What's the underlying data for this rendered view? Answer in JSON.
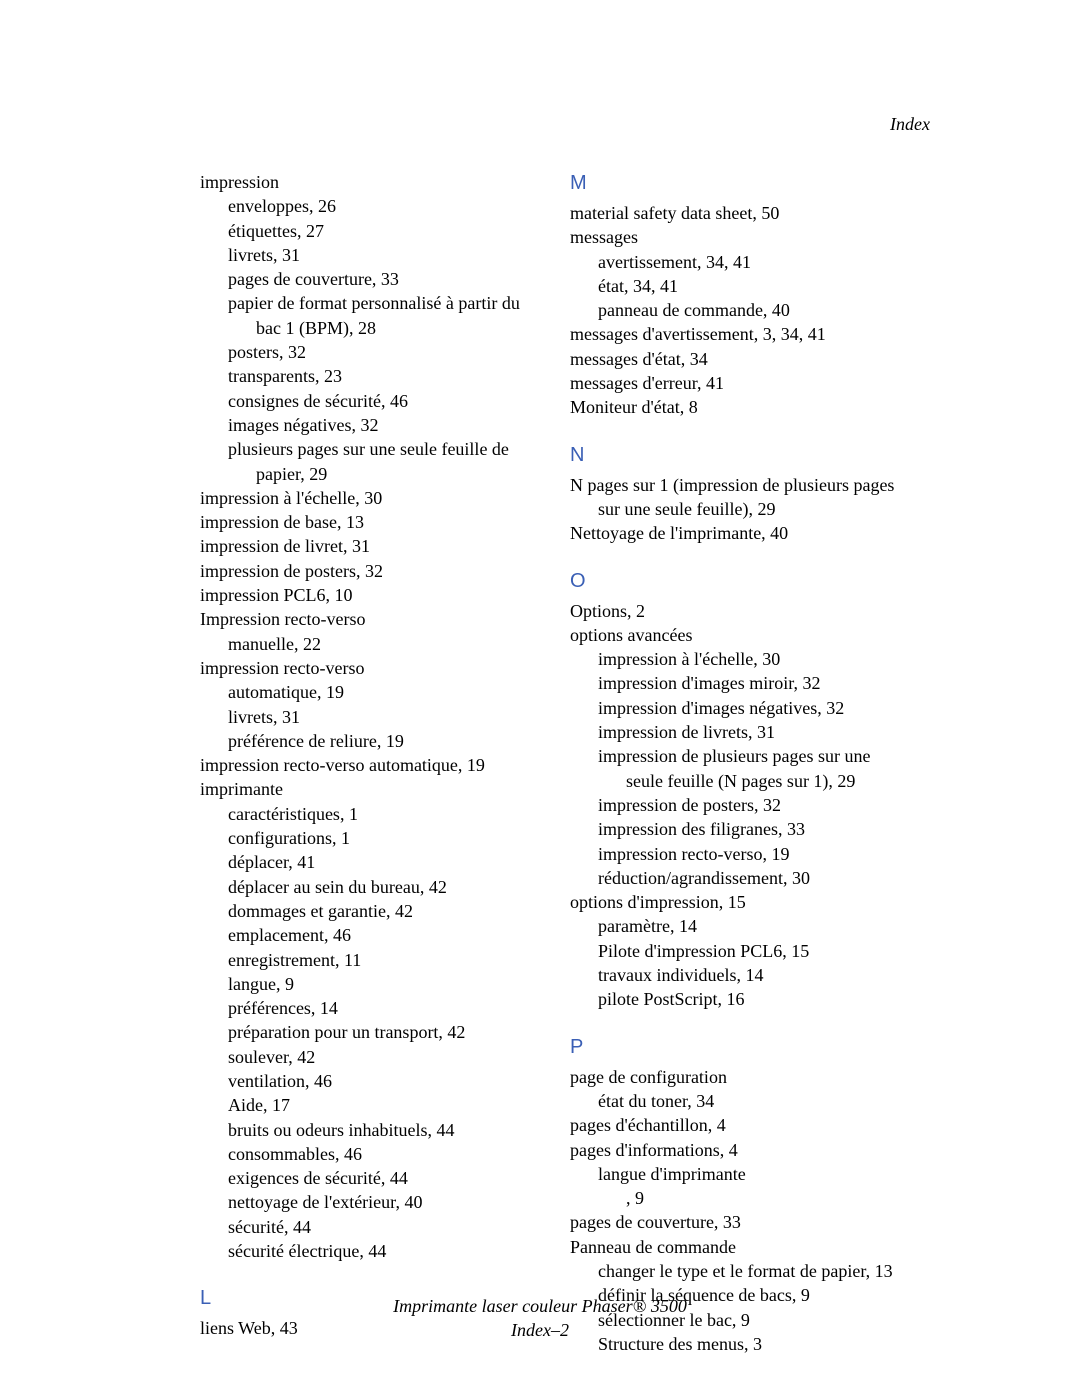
{
  "header": {
    "label": "Index"
  },
  "col_left": {
    "i0": "impression",
    "i0_1": "enveloppes, 26",
    "i0_2": "étiquettes, 27",
    "i0_3": "livrets, 31",
    "i0_4": "pages de couverture, 33",
    "i0_5a": "papier de format personnalisé à partir du",
    "i0_5b": "bac 1 (BPM), 28",
    "i0_6": "posters, 32",
    "i0_7": "transparents, 23",
    "i0_8": "consignes de sécurité, 46",
    "i0_9": "images négatives, 32",
    "i0_10a": "plusieurs pages sur une seule feuille de",
    "i0_10b": "papier, 29",
    "i1": "impression à l'échelle, 30",
    "i2": "impression de base, 13",
    "i3": "impression de livret, 31",
    "i4": "impression de posters, 32",
    "i5": "impression PCL6, 10",
    "i6": "Impression recto-verso",
    "i6_1": "manuelle, 22",
    "i7": "impression recto-verso",
    "i7_1": "automatique, 19",
    "i7_2": "livrets, 31",
    "i7_3": "préférence de reliure, 19",
    "i8": "impression recto-verso automatique, 19",
    "i9": "imprimante",
    "i9_1": "caractéristiques, 1",
    "i9_2": "configurations, 1",
    "i9_3": "déplacer, 41",
    "i9_4": "déplacer au sein du bureau, 42",
    "i9_5": "dommages et garantie, 42",
    "i9_6": "emplacement, 46",
    "i9_7": "enregistrement, 11",
    "i9_8": "langue, 9",
    "i9_9": "préférences, 14",
    "i9_10": "préparation pour un transport, 42",
    "i9_11": "soulever, 42",
    "i9_12": "ventilation, 46",
    "i9_13": "Aide, 17",
    "i9_14": "bruits ou odeurs inhabituels, 44",
    "i9_15": "consommables, 46",
    "i9_16": "exigences de sécurité, 44",
    "i9_17": "nettoyage de l'extérieur, 40",
    "i9_18": "sécurité, 44",
    "i9_19": "sécurité électrique, 44",
    "L_heading": "L",
    "l1": "liens Web, 43"
  },
  "col_right": {
    "M_heading": "M",
    "m1": "material safety data sheet, 50",
    "m2": "messages",
    "m2_1": "avertissement, 34, 41",
    "m2_2": "état, 34, 41",
    "m2_3": "panneau de commande, 40",
    "m3": "messages d'avertissement, 3, 34, 41",
    "m4": "messages d'état, 34",
    "m5": "messages d'erreur, 41",
    "m6": "Moniteur d'état, 8",
    "N_heading": "N",
    "n1a": "N pages sur 1 (impression de plusieurs pages",
    "n1b": "sur une seule feuille), 29",
    "n2": "Nettoyage de l'imprimante, 40",
    "O_heading": "O",
    "o1": "Options, 2",
    "o2": "options avancées",
    "o2_1": "impression à l'échelle, 30",
    "o2_2": "impression d'images miroir, 32",
    "o2_3": "impression d'images négatives, 32",
    "o2_4": "impression de livrets, 31",
    "o2_5a": "impression de plusieurs pages sur une",
    "o2_5b": "seule feuille (N pages sur 1), 29",
    "o2_6": "impression de posters, 32",
    "o2_7": "impression des filigranes, 33",
    "o2_8": "impression recto-verso, 19",
    "o2_9": "réduction/agrandissement, 30",
    "o3": "options d'impression, 15",
    "o3_1": "paramètre, 14",
    "o3_2": "Pilote d'impression PCL6, 15",
    "o3_3": "travaux individuels, 14",
    "o3_4": "pilote PostScript, 16",
    "P_heading": "P",
    "p1": "page de configuration",
    "p1_1": "état du toner, 34",
    "p2": "pages d'échantillon, 4",
    "p3": "pages d'informations, 4",
    "p3_1": "langue d'imprimante",
    "p3_1b": ", 9",
    "p4": "pages de couverture, 33",
    "p5": "Panneau de commande",
    "p5_1": "changer le type et le format de papier, 13",
    "p5_2": "définir la séquence de bacs, 9",
    "p5_3": "sélectionner le bac, 9",
    "p5_4": "Structure des menus, 3"
  },
  "footer": {
    "line1": "Imprimante laser couleur Phaser® 3500",
    "line2": "Index–2"
  }
}
